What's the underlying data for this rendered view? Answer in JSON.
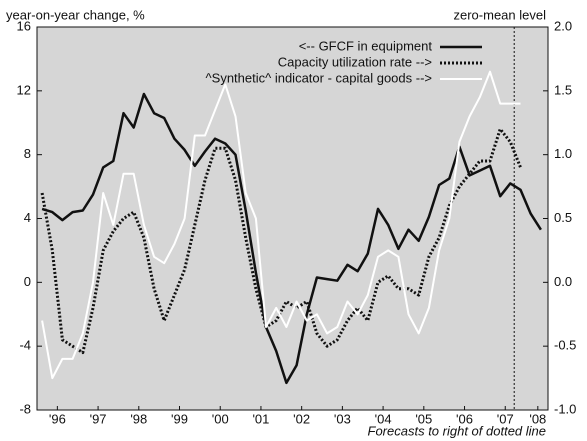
{
  "chart_data": {
    "type": "line",
    "y_label": "year-on-year change, %",
    "y2_label": "zero-mean level",
    "annotation": "Forecasts to right of dotted line",
    "x": [
      1996.125,
      1996.375,
      1996.625,
      1996.875,
      1997.125,
      1997.375,
      1997.625,
      1997.875,
      1998.125,
      1998.375,
      1998.625,
      1998.875,
      1999.125,
      1999.375,
      1999.625,
      1999.875,
      2000.125,
      2000.375,
      2000.625,
      2000.875,
      2001.125,
      2001.375,
      2001.625,
      2001.875,
      2002.125,
      2002.375,
      2002.625,
      2002.875,
      2003.125,
      2003.375,
      2003.625,
      2003.875,
      2004.125,
      2004.375,
      2004.625,
      2004.875,
      2005.125,
      2005.375,
      2005.625,
      2005.875,
      2006.125,
      2006.375,
      2006.625,
      2006.875,
      2007.125,
      2007.375,
      2007.625,
      2007.875,
      2008.125,
      2008.375
    ],
    "xlim": [
      1996,
      2008.55
    ],
    "xticks": [
      {
        "value": 1996.5,
        "label": "'96"
      },
      {
        "value": 1997.5,
        "label": "'97"
      },
      {
        "value": 1998.5,
        "label": "'98"
      },
      {
        "value": 1999.5,
        "label": "'99"
      },
      {
        "value": 2000.5,
        "label": "'00"
      },
      {
        "value": 2001.5,
        "label": "'01"
      },
      {
        "value": 2002.5,
        "label": "'02"
      },
      {
        "value": 2003.5,
        "label": "'03"
      },
      {
        "value": 2004.5,
        "label": "'04"
      },
      {
        "value": 2005.5,
        "label": "'05"
      },
      {
        "value": 2006.5,
        "label": "'06"
      },
      {
        "value": 2007.5,
        "label": "'07"
      },
      {
        "value": 2008.3,
        "label": "'08"
      }
    ],
    "ylim": [
      -8,
      16
    ],
    "yticks": [
      -8,
      -4,
      0,
      4,
      8,
      12,
      16
    ],
    "y2lim": [
      -1,
      2
    ],
    "y2ticks": [
      {
        "value": -1,
        "label": "-1.0"
      },
      {
        "value": -0.5,
        "label": "-0.5"
      },
      {
        "value": 0,
        "label": "0.0"
      },
      {
        "value": 0.5,
        "label": "0.5"
      },
      {
        "value": 1,
        "label": "1.0"
      },
      {
        "value": 1.5,
        "label": "1.5"
      },
      {
        "value": 2,
        "label": "2.0"
      }
    ],
    "forecast_x": 2007.72,
    "series": [
      {
        "name": "<-- GFCF in equipment",
        "color": "#111111",
        "style": "solid",
        "width": 2.5,
        "values": [
          4.6,
          4.4,
          3.9,
          4.4,
          4.5,
          5.5,
          7.2,
          7.6,
          10.6,
          9.7,
          11.8,
          10.6,
          10.3,
          9.0,
          8.3,
          7.3,
          8.2,
          9.0,
          8.7,
          8.0,
          4.5,
          0.6,
          -2.8,
          -4.3,
          -6.3,
          -5.2,
          -2.0,
          0.3,
          0.2,
          0.1,
          1.1,
          0.7,
          1.8,
          4.6,
          3.6,
          2.1,
          3.3,
          2.6,
          4.1,
          6.1,
          6.5,
          8.5,
          6.7,
          7.0,
          7.3,
          5.4,
          6.2,
          5.8,
          4.3,
          3.3
        ]
      },
      {
        "name": "Capacity utilization rate -->",
        "color": "#111111",
        "style": "dotted",
        "width": 3,
        "axis": "y2",
        "values": [
          0.7,
          0.25,
          -0.45,
          -0.5,
          -0.55,
          -0.2,
          0.25,
          0.4,
          0.5,
          0.55,
          0.35,
          -0.05,
          -0.3,
          -0.1,
          0.1,
          0.45,
          0.8,
          1.05,
          1.05,
          0.8,
          0.35,
          -0.05,
          -0.35,
          -0.3,
          -0.15,
          -0.2,
          -0.15,
          -0.4,
          -0.5,
          -0.45,
          -0.3,
          -0.2,
          -0.3,
          0.0,
          0.05,
          -0.05,
          -0.05,
          -0.1,
          0.2,
          0.35,
          0.6,
          0.75,
          0.85,
          0.95,
          0.95,
          1.2,
          1.1,
          0.9,
          null,
          null
        ]
      },
      {
        "name": "^Synthetic^ indicator - capital goods -->",
        "color": "#ffffff",
        "style": "solid",
        "width": 2,
        "axis": "y2",
        "values": [
          -0.3,
          -0.75,
          -0.6,
          -0.6,
          -0.4,
          0.0,
          0.7,
          0.45,
          0.85,
          0.85,
          0.45,
          0.2,
          0.15,
          0.3,
          0.5,
          1.15,
          1.15,
          1.35,
          1.55,
          1.3,
          0.7,
          0.5,
          -0.35,
          -0.2,
          -0.35,
          -0.15,
          -0.3,
          -0.25,
          -0.4,
          -0.35,
          -0.15,
          -0.25,
          -0.1,
          0.2,
          0.25,
          0.2,
          -0.25,
          -0.4,
          -0.2,
          0.25,
          0.5,
          1.1,
          1.3,
          1.45,
          1.65,
          1.4,
          1.4,
          1.4,
          null,
          null
        ]
      }
    ],
    "background": "#d6d6d6",
    "legend": "top-right"
  }
}
